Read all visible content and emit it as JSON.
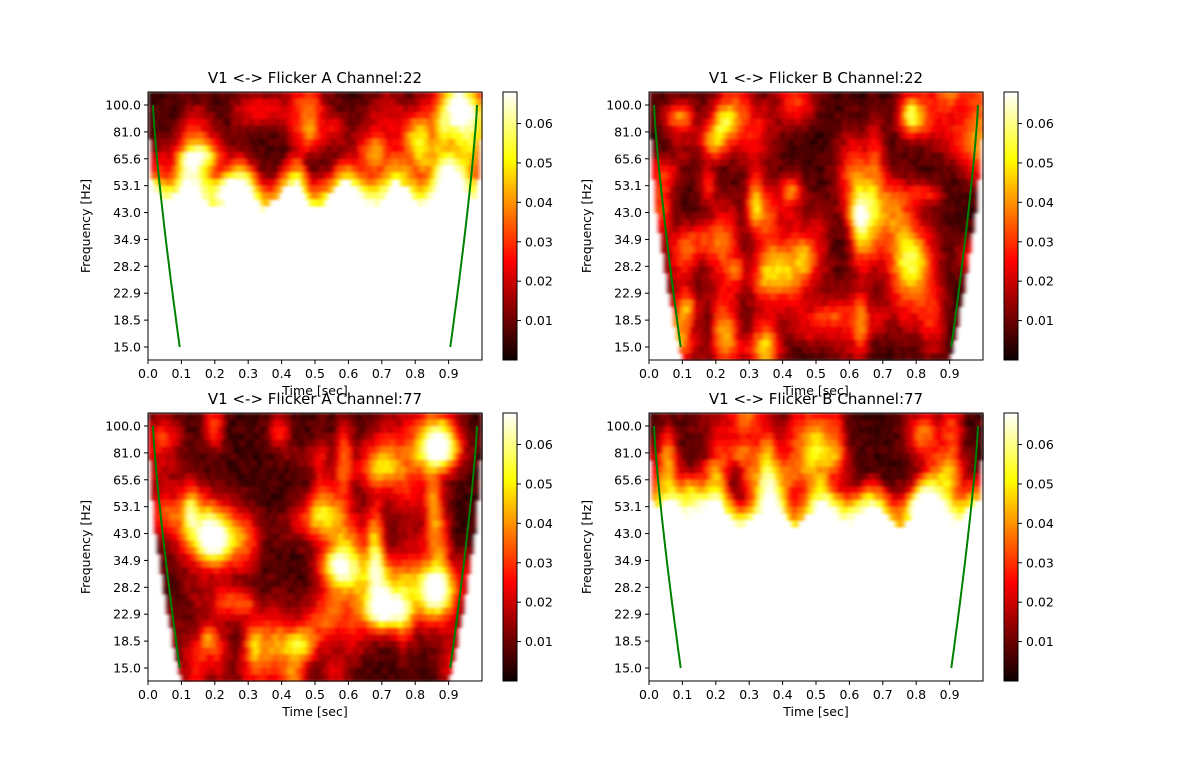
{
  "chart_data": [
    {
      "type": "heatmap",
      "title": "V1 <-> Flicker A Channel:22",
      "xlabel": "Time [sec]",
      "ylabel": "Frequency [Hz]",
      "xlim": [
        0.0,
        1.0
      ],
      "xticks": [
        "0.0",
        "0.1",
        "0.2",
        "0.3",
        "0.4",
        "0.5",
        "0.6",
        "0.7",
        "0.8",
        "0.9"
      ],
      "yticks": [
        "100.0",
        "81.0",
        "65.6",
        "53.1",
        "43.0",
        "34.9",
        "28.2",
        "22.9",
        "18.5",
        "15.0"
      ],
      "colorbar_ticks": [
        "0.01",
        "0.02",
        "0.03",
        "0.04",
        "0.05",
        "0.06"
      ],
      "colorbar_range": [
        0.0,
        0.068
      ],
      "colormap": "hot",
      "cone_of_influence_color": "#008000",
      "white_region_below_hz": 53.1,
      "note_pattern": "bright yellow band along lower edge ~53 Hz, sparse activity above"
    },
    {
      "type": "heatmap",
      "title": "V1 <-> Flicker B Channel:22",
      "xlabel": "Time [sec]",
      "ylabel": "Frequency [Hz]",
      "xlim": [
        0.0,
        1.0
      ],
      "xticks": [
        "0.0",
        "0.1",
        "0.2",
        "0.3",
        "0.4",
        "0.5",
        "0.6",
        "0.7",
        "0.8",
        "0.9"
      ],
      "yticks": [
        "100.0",
        "81.0",
        "65.6",
        "53.1",
        "43.0",
        "34.9",
        "28.2",
        "22.9",
        "18.5",
        "15.0"
      ],
      "colorbar_ticks": [
        "0.01",
        "0.02",
        "0.03",
        "0.04",
        "0.05",
        "0.06"
      ],
      "colorbar_range": [
        0.0,
        0.068
      ],
      "colormap": "hot",
      "cone_of_influence_color": "#008000"
    },
    {
      "type": "heatmap",
      "title": "V1 <-> Flicker A Channel:77",
      "xlabel": "Time [sec]",
      "ylabel": "Frequency [Hz]",
      "xlim": [
        0.0,
        1.0
      ],
      "xticks": [
        "0.0",
        "0.1",
        "0.2",
        "0.3",
        "0.4",
        "0.5",
        "0.6",
        "0.7",
        "0.8",
        "0.9"
      ],
      "yticks": [
        "100.0",
        "81.0",
        "65.6",
        "53.1",
        "43.0",
        "34.9",
        "28.2",
        "22.9",
        "18.5",
        "15.0"
      ],
      "colorbar_ticks": [
        "0.01",
        "0.02",
        "0.03",
        "0.04",
        "0.05",
        "0.06"
      ],
      "colorbar_range": [
        0.0,
        0.068
      ],
      "colormap": "hot",
      "cone_of_influence_color": "#008000"
    },
    {
      "type": "heatmap",
      "title": "V1 <-> Flicker B Channel:77",
      "xlabel": "Time [sec]",
      "ylabel": "Frequency [Hz]",
      "xlim": [
        0.0,
        1.0
      ],
      "xticks": [
        "0.0",
        "0.1",
        "0.2",
        "0.3",
        "0.4",
        "0.5",
        "0.6",
        "0.7",
        "0.8",
        "0.9"
      ],
      "yticks": [
        "100.0",
        "81.0",
        "65.6",
        "53.1",
        "43.0",
        "34.9",
        "28.2",
        "22.9",
        "18.5",
        "15.0"
      ],
      "colorbar_ticks": [
        "0.01",
        "0.02",
        "0.03",
        "0.04",
        "0.05",
        "0.06"
      ],
      "colorbar_range": [
        0.0,
        0.068
      ],
      "colormap": "hot",
      "cone_of_influence_color": "#008000",
      "white_region_below_hz": 53.1
    }
  ]
}
